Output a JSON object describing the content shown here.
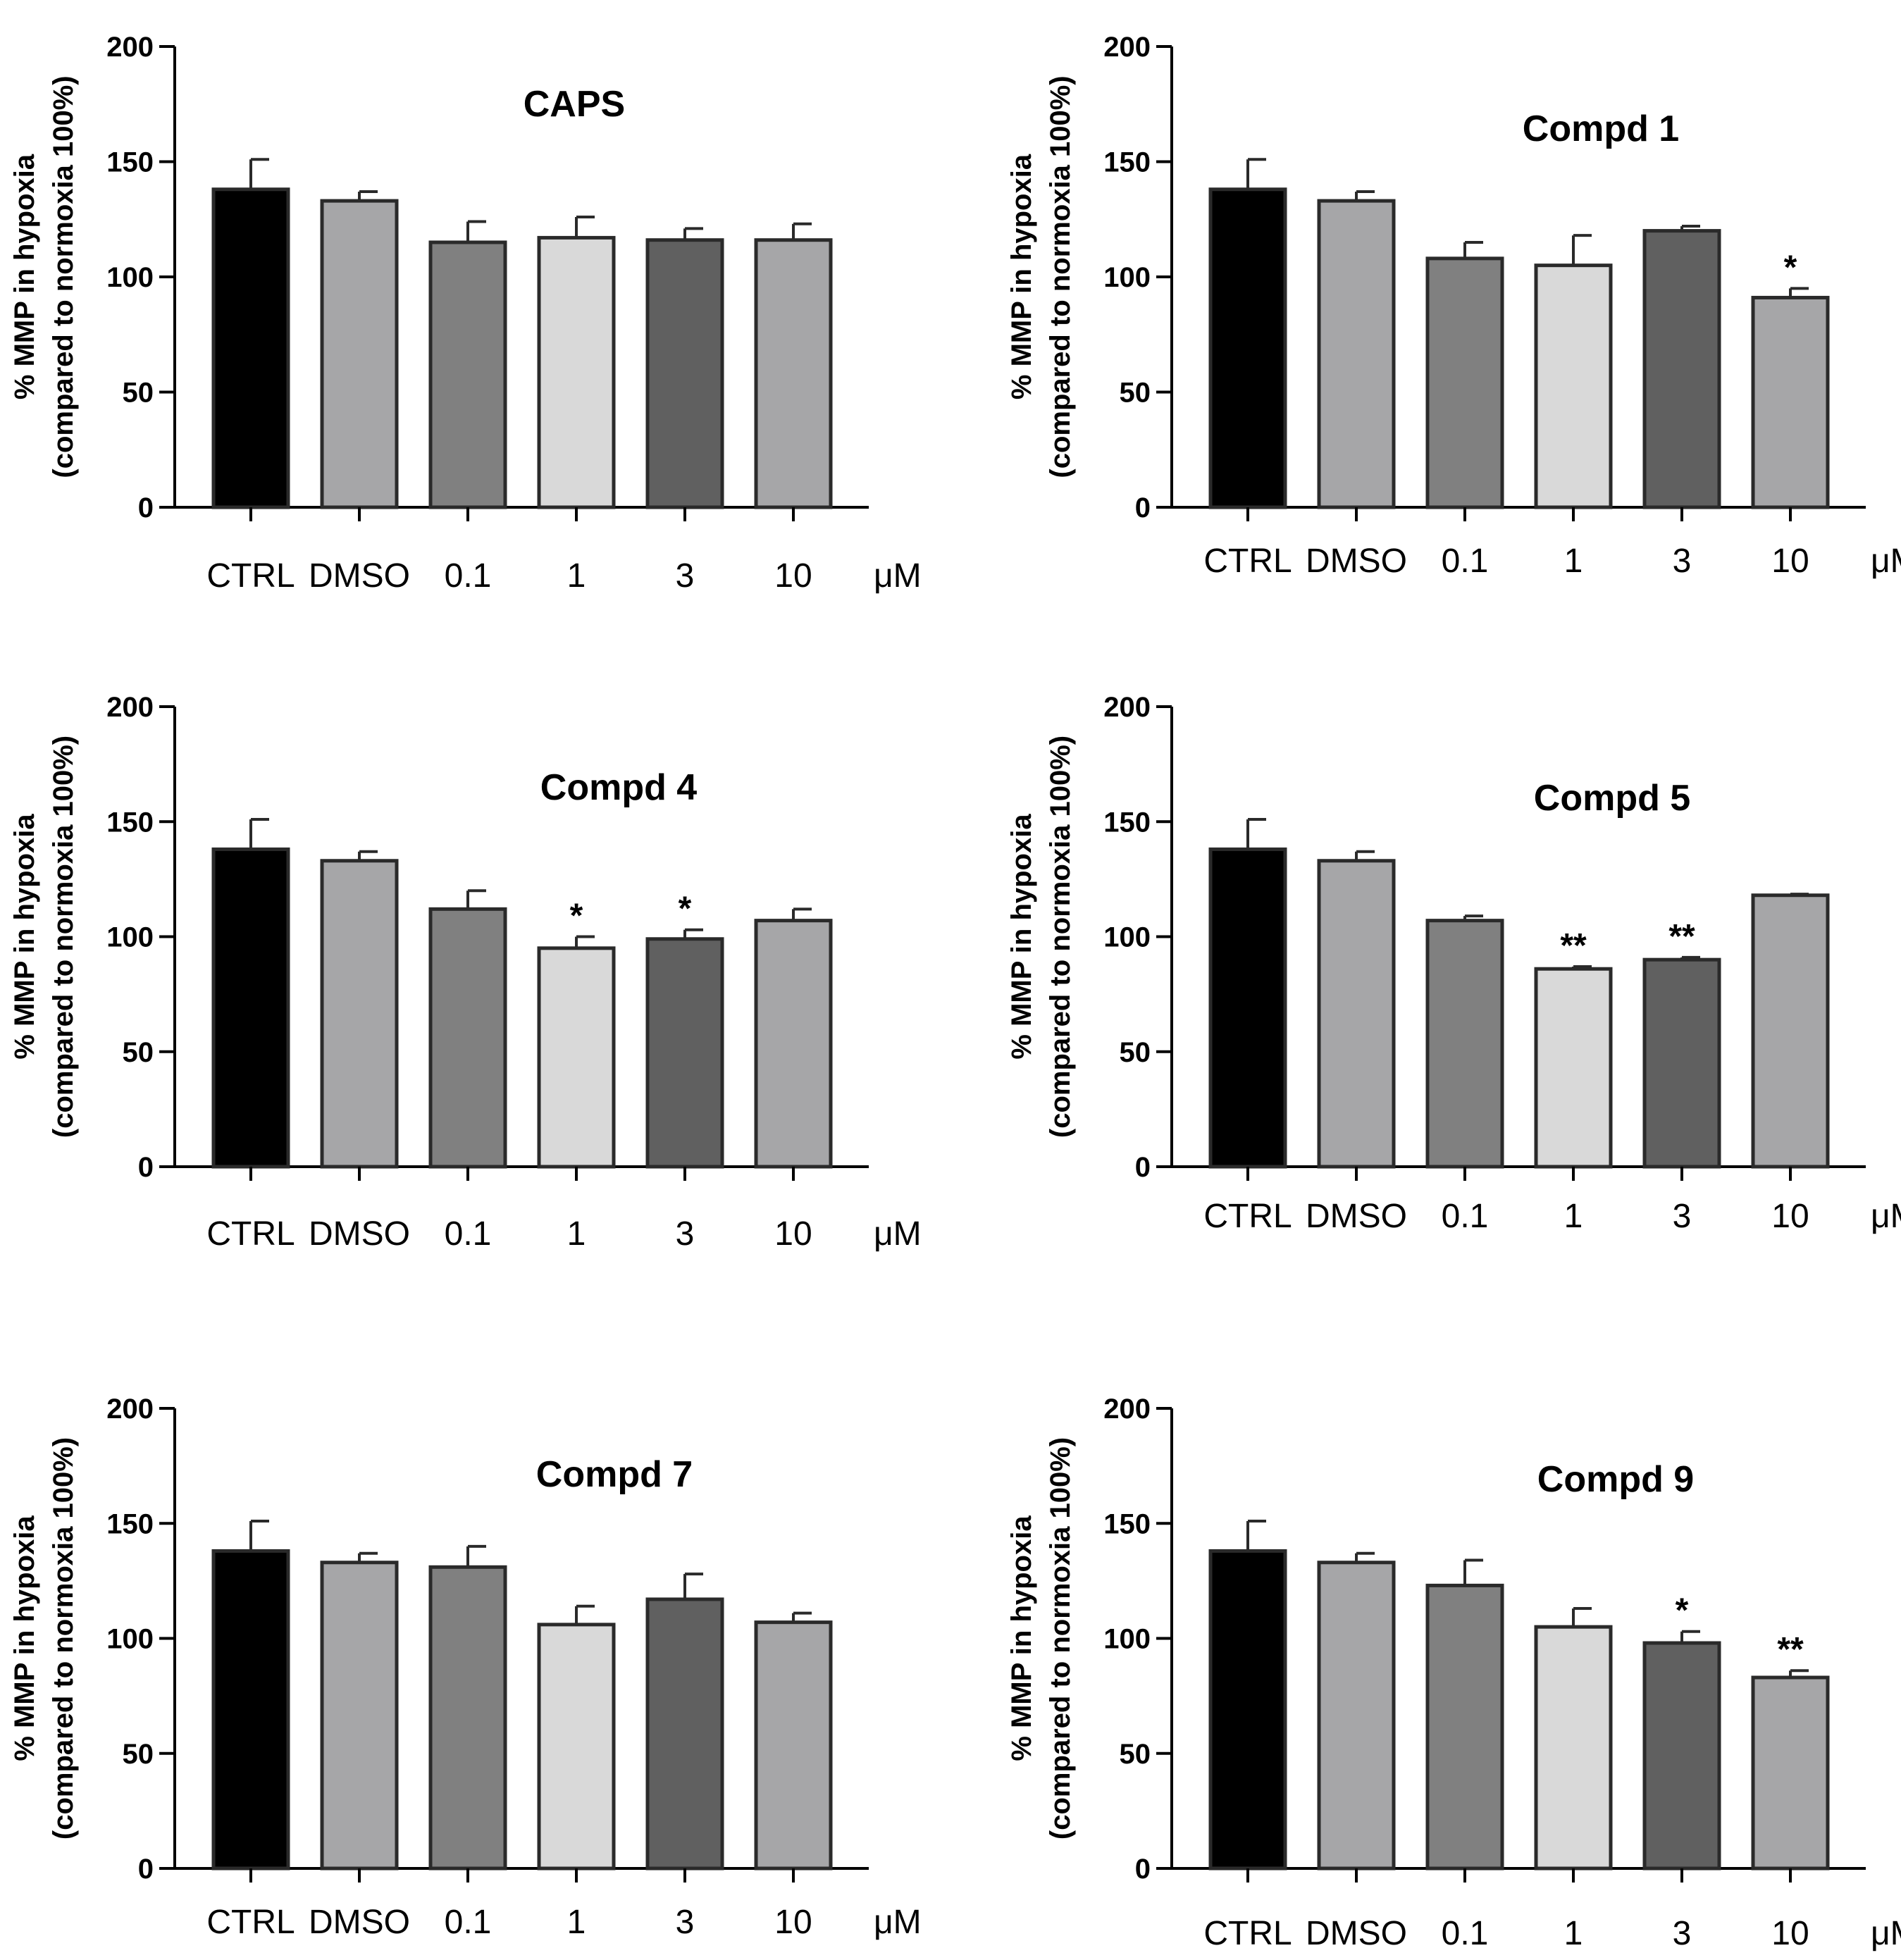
{
  "colors": {
    "CTRL": "#000000",
    "DMSO": "#a6a6a8",
    "0.1": "#808080",
    "1": "#d9d9d9",
    "3": "#606060",
    "10": "#a6a6a8",
    "outline": "#2a2a2a"
  },
  "chart_data": [
    {
      "type": "bar",
      "title": "CAPS",
      "categories": [
        "CTRL",
        "DMSO",
        "0.1",
        "1",
        "3",
        "10"
      ],
      "unit_label": "μM",
      "ylabel_line1": "% MMP in hypoxia",
      "ylabel_line2": "(compared to normoxia 100%)",
      "ylim": [
        0,
        200
      ],
      "yticks": [
        "0",
        "50",
        "100",
        "150",
        "200"
      ],
      "values": [
        138,
        133,
        115,
        117,
        116,
        116
      ],
      "errors": [
        13,
        4,
        9,
        9,
        5,
        7
      ],
      "significance": [
        "",
        "",
        "",
        "",
        "",
        ""
      ]
    },
    {
      "type": "bar",
      "title": "Compd 1",
      "categories": [
        "CTRL",
        "DMSO",
        "0.1",
        "1",
        "3",
        "10"
      ],
      "unit_label": "μM",
      "ylabel_line1": "% MMP in hypoxia",
      "ylabel_line2": "(compared to normoxia 100%)",
      "ylim": [
        0,
        200
      ],
      "yticks": [
        "0",
        "50",
        "100",
        "150",
        "200"
      ],
      "values": [
        138,
        133,
        108,
        105,
        120,
        91
      ],
      "errors": [
        13,
        4,
        7,
        13,
        2,
        4
      ],
      "significance": [
        "",
        "",
        "",
        "",
        "",
        "*"
      ]
    },
    {
      "type": "bar",
      "title": "Compd 4",
      "categories": [
        "CTRL",
        "DMSO",
        "0.1",
        "1",
        "3",
        "10"
      ],
      "unit_label": "μM",
      "ylabel_line1": "% MMP in hypoxia",
      "ylabel_line2": "(compared to normoxia 100%)",
      "ylim": [
        0,
        200
      ],
      "yticks": [
        "0",
        "50",
        "100",
        "150",
        "200"
      ],
      "values": [
        138,
        133,
        112,
        95,
        99,
        107
      ],
      "errors": [
        13,
        4,
        8,
        5,
        4,
        5
      ],
      "significance": [
        "",
        "",
        "",
        "*",
        "*",
        ""
      ]
    },
    {
      "type": "bar",
      "title": "Compd 5",
      "categories": [
        "CTRL",
        "DMSO",
        "0.1",
        "1",
        "3",
        "10"
      ],
      "unit_label": "μM",
      "ylabel_line1": "% MMP in hypoxia",
      "ylabel_line2": "(compared to normoxia 100%)",
      "ylim": [
        0,
        200
      ],
      "yticks": [
        "0",
        "50",
        "100",
        "150",
        "200"
      ],
      "values": [
        138,
        133,
        107,
        86,
        90,
        118
      ],
      "errors": [
        13,
        4,
        2,
        1,
        1,
        0.5
      ],
      "significance": [
        "",
        "",
        "",
        "**",
        "**",
        ""
      ]
    },
    {
      "type": "bar",
      "title": "Compd 7",
      "categories": [
        "CTRL",
        "DMSO",
        "0.1",
        "1",
        "3",
        "10"
      ],
      "unit_label": "μM",
      "ylabel_line1": "% MMP in hypoxia",
      "ylabel_line2": "(compared to normoxia 100%)",
      "ylim": [
        0,
        200
      ],
      "yticks": [
        "0",
        "50",
        "100",
        "150",
        "200"
      ],
      "values": [
        138,
        133,
        131,
        106,
        117,
        107
      ],
      "errors": [
        13,
        4,
        9,
        8,
        11,
        4
      ],
      "significance": [
        "",
        "",
        "",
        "",
        "",
        ""
      ]
    },
    {
      "type": "bar",
      "title": "Compd 9",
      "categories": [
        "CTRL",
        "DMSO",
        "0.1",
        "1",
        "3",
        "10"
      ],
      "unit_label": "μM",
      "ylabel_line1": "% MMP in hypoxia",
      "ylabel_line2": "(compared to normoxia 100%)",
      "ylim": [
        0,
        200
      ],
      "yticks": [
        "0",
        "50",
        "100",
        "150",
        "200"
      ],
      "values": [
        138,
        133,
        123,
        105,
        98,
        83
      ],
      "errors": [
        13,
        4,
        11,
        8,
        5,
        3
      ],
      "significance": [
        "",
        "",
        "",
        "",
        "*",
        "**"
      ]
    }
  ]
}
